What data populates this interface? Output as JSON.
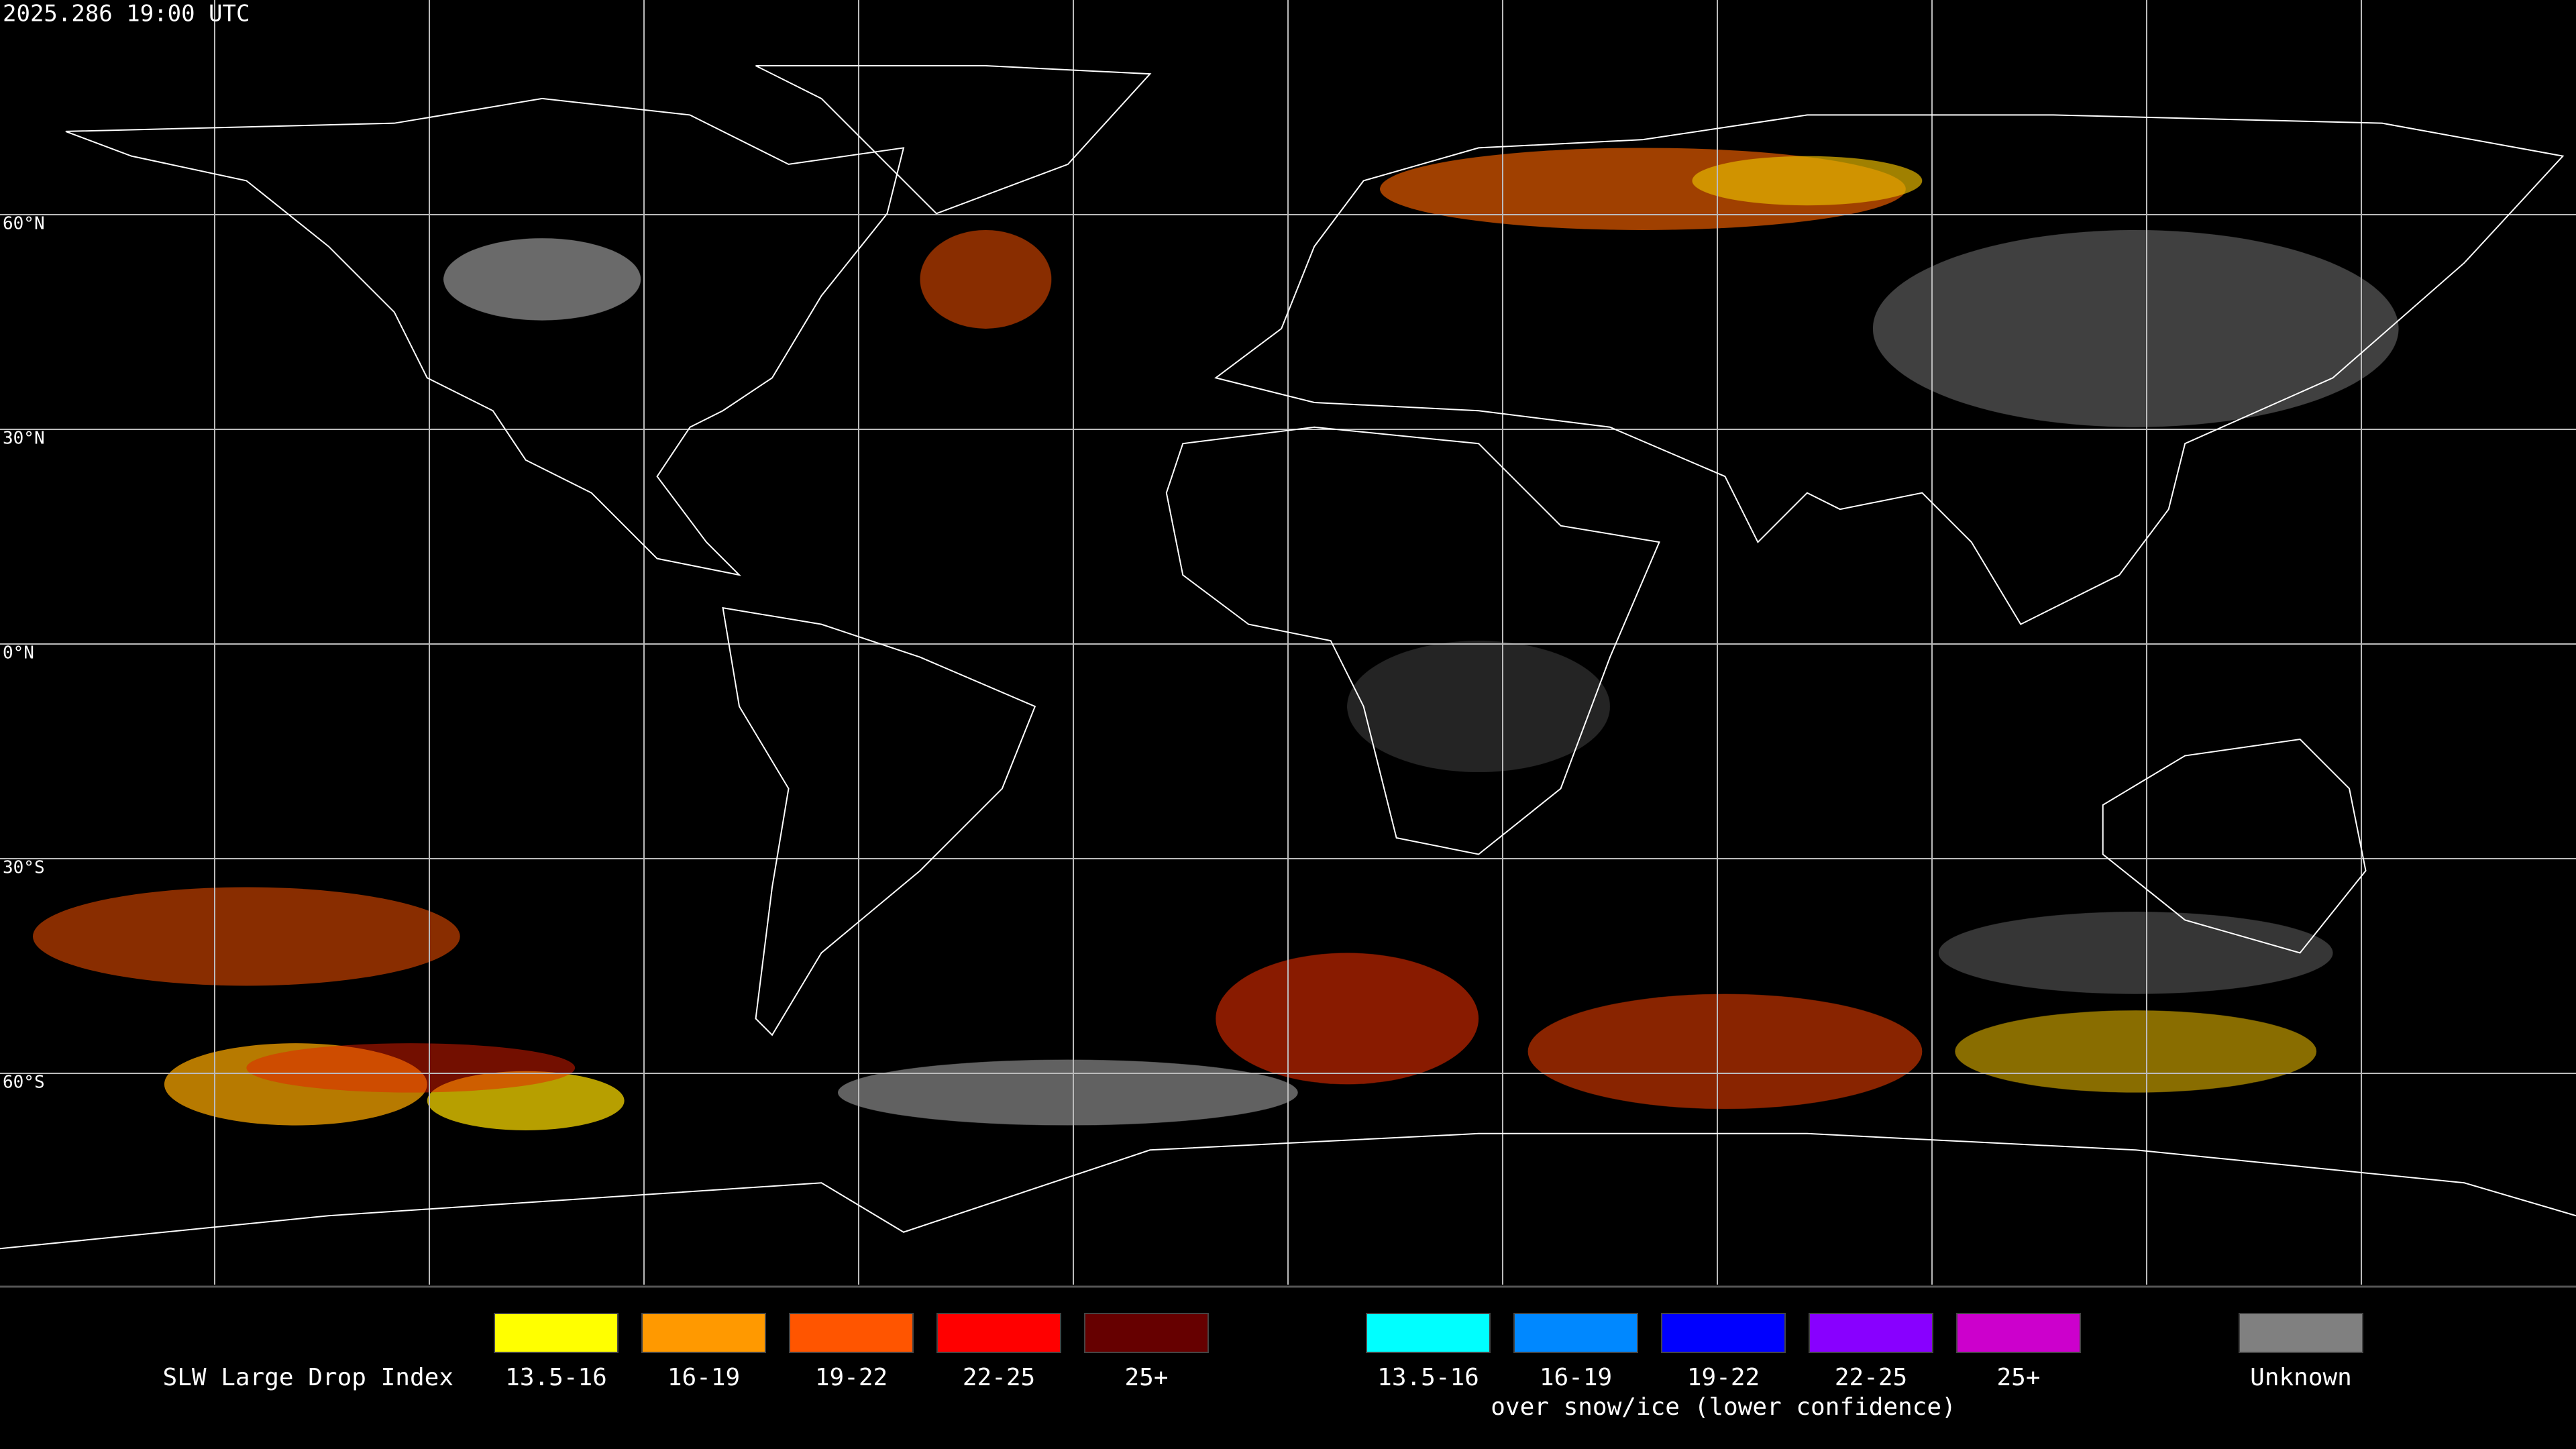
{
  "header": {
    "timestamp": "2025.286 19:00 UTC"
  },
  "map": {
    "latitude_labels": [
      "60°N",
      "30°N",
      "0°N",
      "30°S",
      "60°S"
    ]
  },
  "legend": {
    "title": "SLW Large Drop Index",
    "groups": [
      {
        "items": [
          {
            "label": "13.5-16",
            "color": "#ffff00"
          },
          {
            "label": "16-19",
            "color": "#ff9900"
          },
          {
            "label": "19-22",
            "color": "#ff5500"
          },
          {
            "label": "22-25",
            "color": "#ff0000"
          },
          {
            "label": "25+",
            "color": "#660000"
          }
        ]
      },
      {
        "items": [
          {
            "label": "13.5-16",
            "color": "#00ffff"
          },
          {
            "label": "16-19",
            "color": "#0088ff"
          },
          {
            "label": "19-22",
            "color": "#0000ff"
          },
          {
            "label": "22-25",
            "color": "#8800ff"
          },
          {
            "label": "25+",
            "color": "#cc00cc"
          }
        ],
        "note": "over snow/ice (lower confidence)"
      },
      {
        "items": [
          {
            "label": "Unknown",
            "color": "#808080"
          }
        ]
      }
    ]
  }
}
